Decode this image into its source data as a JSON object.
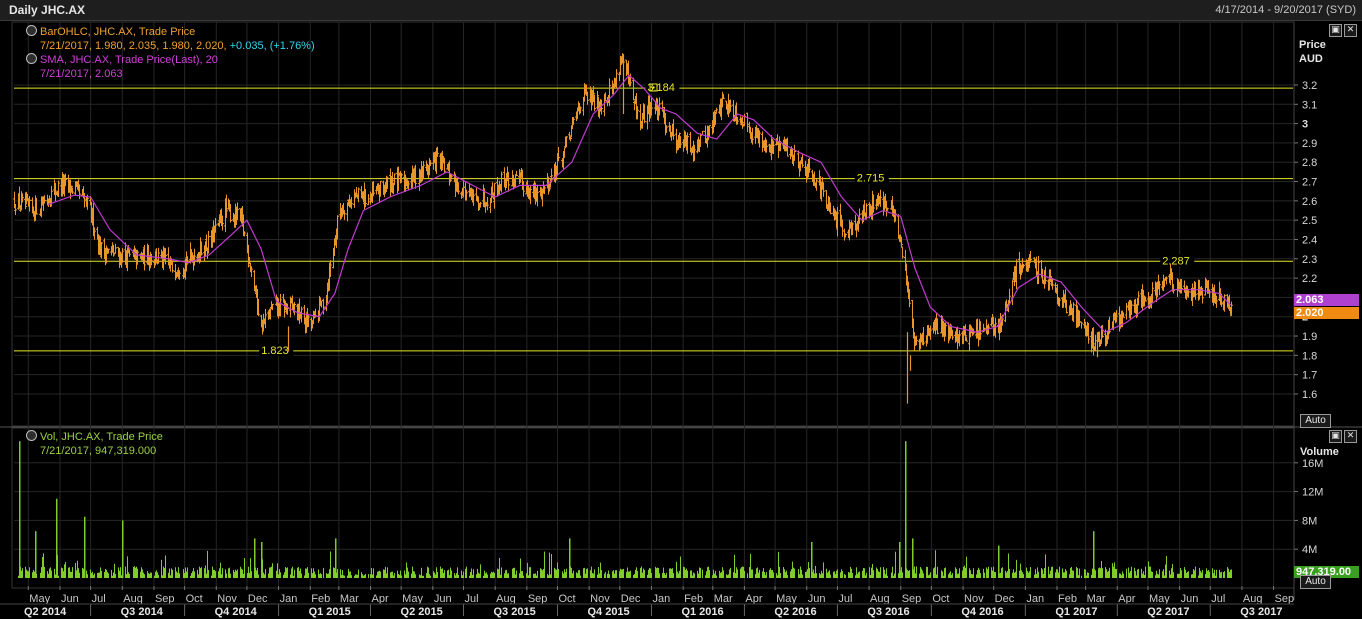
{
  "window": {
    "title": "Daily JHC.AX",
    "date_range": "4/17/2014 - 9/20/2017 (SYD)"
  },
  "price_pane": {
    "axis_title_1": "Price",
    "axis_title_2": "AUD",
    "auto_label": "Auto",
    "legend": {
      "bar_name": "BarOHLC, JHC.AX, Trade Price",
      "bar_values": "7/21/2017, 1.980, 2.035, 1.980, 2.020,",
      "bar_change": "+0.035, (+1.76%)",
      "sma_name": "SMA, JHC.AX, Trade Price(Last),  20",
      "sma_values": "7/21/2017, 2.063"
    },
    "last_sma_badge": "2.063",
    "last_price_badge": "2.020"
  },
  "volume_pane": {
    "axis_title": "Volume",
    "auto_label": "Auto",
    "legend": {
      "name": "Vol, JHC.AX, Trade Price",
      "values": "7/21/2017, 947,319.000"
    },
    "last_volume_badge": "947,319.00"
  },
  "buttons": {
    "restore_icon": "restore-icon",
    "close_icon": "close-icon",
    "restore_glyph": "▣",
    "close_glyph": "✕"
  },
  "colors": {
    "background": "#000000",
    "grid": "#262626",
    "price_bars": "#e8952a",
    "sma": "#c23bd1",
    "volume_bars": "#7fcc2a",
    "horizontal_lines": "#e6e62a",
    "sma_badge": "#b040d0",
    "price_badge": "#f08a10"
  },
  "chart_data": [
    {
      "type": "ohlc",
      "title": "Daily JHC.AX",
      "ylabel": "Price AUD",
      "ylim": [
        1.5,
        3.3
      ],
      "y_ticks": [
        "1.6",
        "1.7",
        "1.8",
        "1.9",
        "2",
        "2.1",
        "2.2",
        "2.3",
        "2.4",
        "2.5",
        "2.6",
        "2.7",
        "2.8",
        "2.9",
        "3",
        "3.1",
        "3.2"
      ],
      "x_month_ticks": [
        "May",
        "Jun",
        "Jul",
        "Aug",
        "Sep",
        "Oct",
        "Nov",
        "Dec",
        "Jan",
        "Feb",
        "Mar",
        "Apr",
        "May",
        "Jun",
        "Jul",
        "Aug",
        "Sep",
        "Oct",
        "Nov",
        "Dec",
        "Jan",
        "Feb",
        "Mar",
        "Apr",
        "May",
        "Jun",
        "Jul",
        "Aug",
        "Sep",
        "Oct",
        "Nov",
        "Dec",
        "Jan",
        "Feb",
        "Mar",
        "Apr",
        "May",
        "Jun",
        "Jul",
        "Aug",
        "Sep"
      ],
      "x_quarter_ticks": [
        "Q2 2014",
        "Q3 2014",
        "Q4 2014",
        "Q1 2015",
        "Q2 2015",
        "Q3 2015",
        "Q4 2015",
        "Q1 2016",
        "Q2 2016",
        "Q3 2016",
        "Q4 2016",
        "Q1 2017",
        "Q2 2017",
        "Q3 2017"
      ],
      "close_path": [
        [
          "2014-04-17",
          2.6
        ],
        [
          "2014-05-05",
          2.55
        ],
        [
          "2014-05-20",
          2.62
        ],
        [
          "2014-06-02",
          2.68
        ],
        [
          "2014-06-16",
          2.66
        ],
        [
          "2014-06-30",
          2.55
        ],
        [
          "2014-07-10",
          2.35
        ],
        [
          "2014-07-28",
          2.32
        ],
        [
          "2014-08-15",
          2.3
        ],
        [
          "2014-09-01",
          2.32
        ],
        [
          "2014-09-20",
          2.25
        ],
        [
          "2014-10-05",
          2.3
        ],
        [
          "2014-10-25",
          2.38
        ],
        [
          "2014-11-10",
          2.55
        ],
        [
          "2014-11-25",
          2.5
        ],
        [
          "2014-12-05",
          2.25
        ],
        [
          "2014-12-15",
          1.95
        ],
        [
          "2014-12-28",
          2.05
        ],
        [
          "2015-01-15",
          2.05
        ],
        [
          "2015-02-01",
          1.95
        ],
        [
          "2015-02-15",
          2.1
        ],
        [
          "2015-03-01",
          2.55
        ],
        [
          "2015-03-15",
          2.62
        ],
        [
          "2015-04-01",
          2.62
        ],
        [
          "2015-04-20",
          2.7
        ],
        [
          "2015-05-05",
          2.7
        ],
        [
          "2015-05-20",
          2.75
        ],
        [
          "2015-06-05",
          2.82
        ],
        [
          "2015-06-25",
          2.68
        ],
        [
          "2015-07-10",
          2.6
        ],
        [
          "2015-07-25",
          2.62
        ],
        [
          "2015-08-10",
          2.72
        ],
        [
          "2015-08-25",
          2.7
        ],
        [
          "2015-09-10",
          2.62
        ],
        [
          "2015-09-25",
          2.72
        ],
        [
          "2015-10-10",
          2.9
        ],
        [
          "2015-10-25",
          3.15
        ],
        [
          "2015-11-10",
          3.1
        ],
        [
          "2015-11-25",
          3.2
        ],
        [
          "2015-12-02",
          3.35
        ],
        [
          "2015-12-10",
          3.2
        ],
        [
          "2015-12-20",
          3.0
        ],
        [
          "2015-12-31",
          3.1
        ],
        [
          "2016-01-10",
          3.05
        ],
        [
          "2016-01-25",
          2.92
        ],
        [
          "2016-02-10",
          2.88
        ],
        [
          "2016-02-25",
          2.95
        ],
        [
          "2016-03-10",
          3.12
        ],
        [
          "2016-03-25",
          3.05
        ],
        [
          "2016-04-10",
          2.95
        ],
        [
          "2016-04-25",
          2.88
        ],
        [
          "2016-05-10",
          2.88
        ],
        [
          "2016-05-25",
          2.8
        ],
        [
          "2016-06-10",
          2.72
        ],
        [
          "2016-06-25",
          2.52
        ],
        [
          "2016-07-10",
          2.45
        ],
        [
          "2016-07-25",
          2.52
        ],
        [
          "2016-08-10",
          2.62
        ],
        [
          "2016-08-25",
          2.52
        ],
        [
          "2016-09-05",
          2.25
        ],
        [
          "2016-09-15",
          1.85
        ],
        [
          "2016-09-25",
          1.9
        ],
        [
          "2016-10-10",
          1.95
        ],
        [
          "2016-10-25",
          1.9
        ],
        [
          "2016-11-10",
          1.92
        ],
        [
          "2016-11-25",
          1.92
        ],
        [
          "2016-12-10",
          1.98
        ],
        [
          "2016-12-25",
          2.28
        ],
        [
          "2017-01-10",
          2.25
        ],
        [
          "2017-01-25",
          2.2
        ],
        [
          "2017-02-10",
          2.05
        ],
        [
          "2017-02-25",
          1.98
        ],
        [
          "2017-03-10",
          1.85
        ],
        [
          "2017-03-25",
          1.95
        ],
        [
          "2017-04-10",
          2.02
        ],
        [
          "2017-04-25",
          2.1
        ],
        [
          "2017-05-10",
          2.15
        ],
        [
          "2017-05-20",
          2.22
        ],
        [
          "2017-06-01",
          2.12
        ],
        [
          "2017-06-15",
          2.15
        ],
        [
          "2017-06-30",
          2.12
        ],
        [
          "2017-07-10",
          2.1
        ],
        [
          "2017-07-21",
          2.02
        ]
      ],
      "sma_path": [
        [
          "2014-05-20",
          2.58
        ],
        [
          "2014-06-15",
          2.63
        ],
        [
          "2014-07-01",
          2.62
        ],
        [
          "2014-07-20",
          2.45
        ],
        [
          "2014-08-15",
          2.32
        ],
        [
          "2014-09-15",
          2.3
        ],
        [
          "2014-10-05",
          2.28
        ],
        [
          "2014-10-25",
          2.32
        ],
        [
          "2014-11-15",
          2.42
        ],
        [
          "2014-12-01",
          2.5
        ],
        [
          "2014-12-15",
          2.35
        ],
        [
          "2014-12-30",
          2.08
        ],
        [
          "2015-01-20",
          2.02
        ],
        [
          "2015-02-10",
          2.0
        ],
        [
          "2015-02-25",
          2.12
        ],
        [
          "2015-03-10",
          2.35
        ],
        [
          "2015-03-25",
          2.55
        ],
        [
          "2015-04-20",
          2.62
        ],
        [
          "2015-05-20",
          2.68
        ],
        [
          "2015-06-15",
          2.75
        ],
        [
          "2015-07-10",
          2.68
        ],
        [
          "2015-08-01",
          2.62
        ],
        [
          "2015-08-25",
          2.68
        ],
        [
          "2015-09-20",
          2.68
        ],
        [
          "2015-10-15",
          2.8
        ],
        [
          "2015-11-05",
          3.05
        ],
        [
          "2015-11-25",
          3.15
        ],
        [
          "2015-12-10",
          3.25
        ],
        [
          "2015-12-25",
          3.18
        ],
        [
          "2016-01-10",
          3.08
        ],
        [
          "2016-01-25",
          3.05
        ],
        [
          "2016-02-15",
          2.95
        ],
        [
          "2016-03-05",
          2.92
        ],
        [
          "2016-03-25",
          3.05
        ],
        [
          "2016-04-10",
          3.02
        ],
        [
          "2016-04-30",
          2.92
        ],
        [
          "2016-05-25",
          2.85
        ],
        [
          "2016-06-15",
          2.8
        ],
        [
          "2016-07-05",
          2.62
        ],
        [
          "2016-07-25",
          2.5
        ],
        [
          "2016-08-15",
          2.55
        ],
        [
          "2016-09-01",
          2.52
        ],
        [
          "2016-09-15",
          2.25
        ],
        [
          "2016-09-30",
          2.05
        ],
        [
          "2016-10-20",
          1.95
        ],
        [
          "2016-11-15",
          1.92
        ],
        [
          "2016-12-05",
          1.95
        ],
        [
          "2016-12-25",
          2.15
        ],
        [
          "2017-01-15",
          2.22
        ],
        [
          "2017-02-05",
          2.18
        ],
        [
          "2017-02-25",
          2.05
        ],
        [
          "2017-03-20",
          1.92
        ],
        [
          "2017-04-10",
          1.97
        ],
        [
          "2017-05-05",
          2.07
        ],
        [
          "2017-05-25",
          2.14
        ],
        [
          "2017-06-20",
          2.14
        ],
        [
          "2017-07-10",
          2.12
        ],
        [
          "2017-07-21",
          2.06
        ]
      ],
      "spikes": [
        {
          "date": "2015-12-04",
          "high": 3.36,
          "low": 3.05
        },
        {
          "date": "2016-09-07",
          "high": 1.92,
          "low": 1.55
        },
        {
          "date": "2016-09-10",
          "high": 1.8,
          "low": 1.72
        },
        {
          "date": "2015-01-10",
          "high": 1.95,
          "low": 1.82
        },
        {
          "date": "2017-03-12",
          "high": 1.92,
          "low": 1.79
        }
      ],
      "horizontal_levels": [
        {
          "value": 3.184,
          "label": "3.184"
        },
        {
          "value": 2.715,
          "label": "2.715"
        },
        {
          "value": 2.287,
          "label": "2.287"
        },
        {
          "value": 1.823,
          "label": "1.823"
        }
      ],
      "last_bar": {
        "date": "7/21/2017",
        "open": 1.98,
        "high": 2.035,
        "low": 1.98,
        "close": 2.02,
        "change": 0.035,
        "change_pct": 1.76
      },
      "last_sma": 2.063
    },
    {
      "type": "bar",
      "title": "Vol, JHC.AX, Trade Price",
      "ylabel": "Volume",
      "ylim": [
        0,
        20000000
      ],
      "y_ticks": [
        "4M",
        "8M",
        "12M",
        "16M"
      ],
      "baseline_volume": 1000000,
      "spikes": [
        {
          "date": "2014-04-22",
          "value": 19000000
        },
        {
          "date": "2014-05-08",
          "value": 6500000
        },
        {
          "date": "2014-05-28",
          "value": 11000000
        },
        {
          "date": "2014-06-25",
          "value": 8500000
        },
        {
          "date": "2014-08-01",
          "value": 8000000
        },
        {
          "date": "2014-12-08",
          "value": 5500000
        },
        {
          "date": "2014-12-15",
          "value": 5000000
        },
        {
          "date": "2015-02-25",
          "value": 5500000
        },
        {
          "date": "2015-10-12",
          "value": 5500000
        },
        {
          "date": "2016-06-05",
          "value": 5000000
        },
        {
          "date": "2016-08-30",
          "value": 5000000
        },
        {
          "date": "2016-09-05",
          "value": 19000000
        },
        {
          "date": "2016-09-12",
          "value": 5500000
        },
        {
          "date": "2016-12-05",
          "value": 4500000
        },
        {
          "date": "2017-03-08",
          "value": 6500000
        }
      ],
      "last_value": 947319
    }
  ]
}
